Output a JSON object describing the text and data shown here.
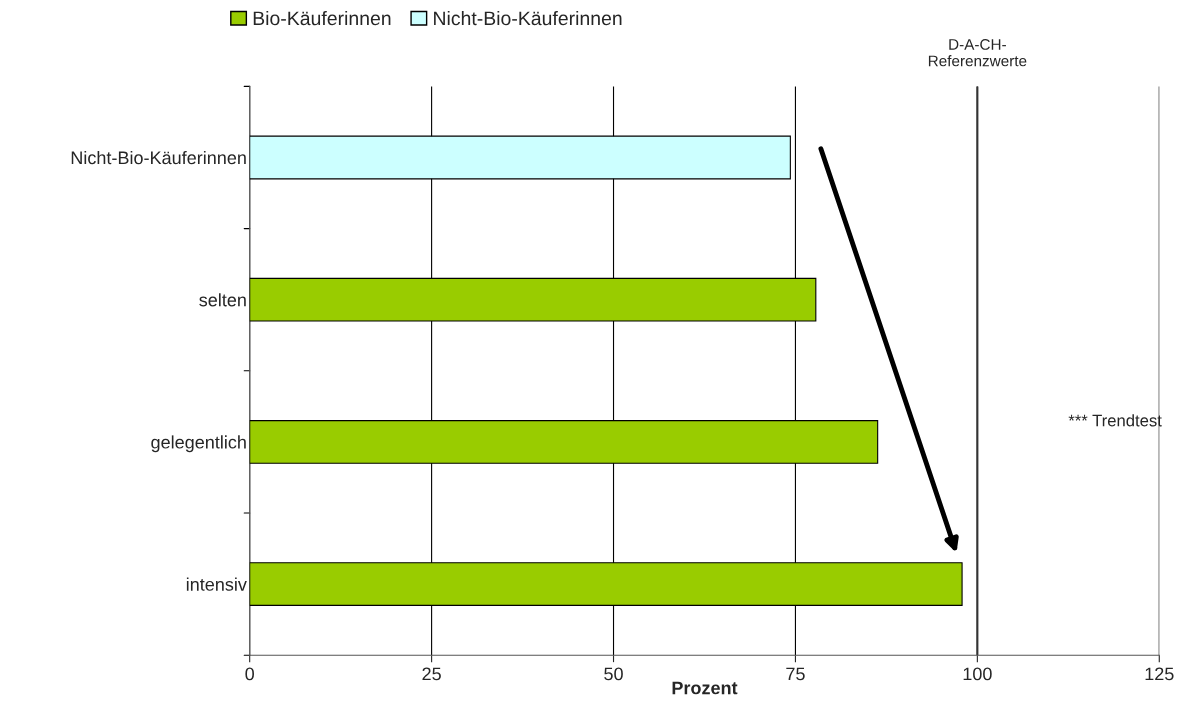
{
  "chart_data": {
    "type": "bar",
    "orientation": "horizontal",
    "xlabel": "Prozent",
    "categories": [
      "Nicht-Bio-Käuferinnen",
      "selten",
      "gelegentlich",
      "intensiv"
    ],
    "series": [
      {
        "name": "Bio-Käuferinnen",
        "color": "#99cc00",
        "values": [
          null,
          77.8,
          86.3,
          97.9
        ]
      },
      {
        "name": "Nicht-Bio-Käuferinnen",
        "color": "#ccffff",
        "values": [
          74.3,
          null,
          null,
          null
        ]
      }
    ],
    "xlim": [
      0,
      125
    ],
    "xticks": [
      0,
      25,
      50,
      75,
      100,
      125
    ],
    "grid": "x",
    "legend": "top left",
    "ref_lines": [
      {
        "axis": "x",
        "value": 100,
        "label": "D-A-CH-\nReferenzwerte"
      }
    ],
    "annotations": [
      "*** Trendtest"
    ]
  }
}
